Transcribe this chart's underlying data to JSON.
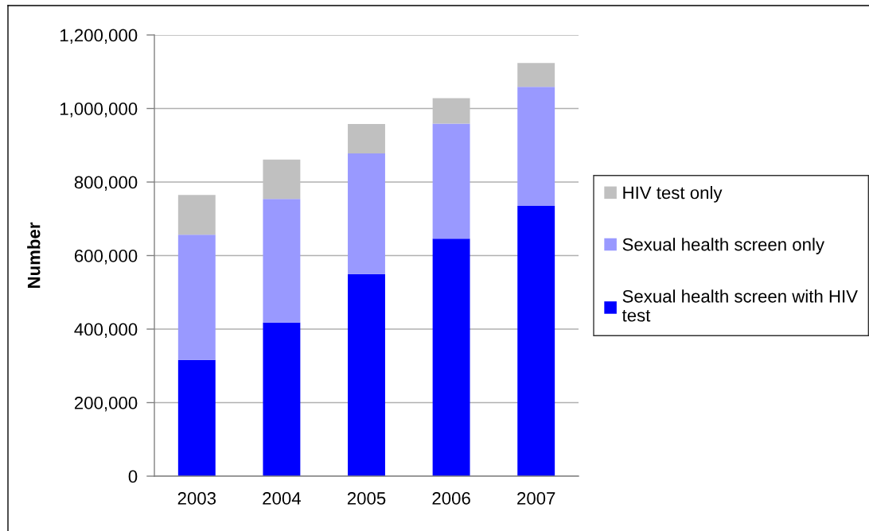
{
  "chart_data": {
    "type": "bar",
    "stacked": true,
    "categories": [
      "2003",
      "2004",
      "2005",
      "2006",
      "2007"
    ],
    "series": [
      {
        "name": "Sexual health screen with HIV test",
        "color": "#0000ff",
        "values": [
          316000,
          418000,
          550000,
          646000,
          735000
        ]
      },
      {
        "name": "Sexual health screen only",
        "color": "#9999ff",
        "values": [
          341000,
          336000,
          328000,
          313000,
          324000
        ]
      },
      {
        "name": "HIV test only",
        "color": "#c0c0c0",
        "values": [
          108000,
          107000,
          80000,
          69000,
          65000
        ]
      }
    ],
    "ylabel": "Number",
    "ylim": [
      0,
      1200000
    ],
    "yticks": [
      0,
      {
        "value": 200000,
        "label": "200,000"
      },
      {
        "value": 400000,
        "label": "400,000"
      },
      {
        "value": 600000,
        "label": "600,000"
      },
      {
        "value": 800000,
        "label": "800,000"
      },
      {
        "value": 1000000,
        "label": "1,000,000"
      },
      {
        "value": 1200000,
        "label": "1,200,000"
      }
    ],
    "grid": "y",
    "legend": "right"
  }
}
